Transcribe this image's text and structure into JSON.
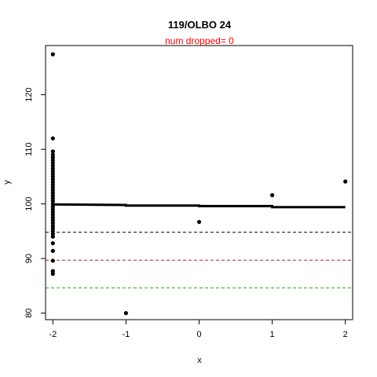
{
  "chart_data": {
    "type": "scatter",
    "title": "119/OLBO 24",
    "subtitle": "num dropped= 0",
    "xlabel": "x",
    "ylabel": "y",
    "xlim": [
      -2.1,
      2.1
    ],
    "ylim": [
      78.8,
      129.0
    ],
    "x_ticks": [
      -2,
      -1,
      0,
      1,
      2
    ],
    "x_tick_labels": [
      "-2",
      "-1",
      "0",
      "1",
      "2"
    ],
    "y_ticks": [
      80,
      90,
      100,
      110,
      120
    ],
    "y_tick_labels": [
      "80",
      "90",
      "100",
      "110",
      "120"
    ],
    "grid": false,
    "points": [
      {
        "x": -2,
        "y": 127.4
      },
      {
        "x": -2,
        "y": 112.0
      },
      {
        "x": -2,
        "y": 109.6
      },
      {
        "x": -2,
        "y": 109.0
      },
      {
        "x": -2,
        "y": 108.5
      },
      {
        "x": -2,
        "y": 108.0
      },
      {
        "x": -2,
        "y": 107.5
      },
      {
        "x": -2,
        "y": 107.0
      },
      {
        "x": -2,
        "y": 106.5
      },
      {
        "x": -2,
        "y": 106.0
      },
      {
        "x": -2,
        "y": 105.5
      },
      {
        "x": -2,
        "y": 105.0
      },
      {
        "x": -2,
        "y": 104.5
      },
      {
        "x": -2,
        "y": 104.0
      },
      {
        "x": -2,
        "y": 103.5
      },
      {
        "x": -2,
        "y": 103.0
      },
      {
        "x": -2,
        "y": 102.5
      },
      {
        "x": -2,
        "y": 102.0
      },
      {
        "x": -2,
        "y": 101.5
      },
      {
        "x": -2,
        "y": 101.0
      },
      {
        "x": -2,
        "y": 100.5
      },
      {
        "x": -2,
        "y": 100.0
      },
      {
        "x": -2,
        "y": 99.5
      },
      {
        "x": -2,
        "y": 99.0
      },
      {
        "x": -2,
        "y": 98.5
      },
      {
        "x": -2,
        "y": 98.0
      },
      {
        "x": -2,
        "y": 97.5
      },
      {
        "x": -2,
        "y": 97.0
      },
      {
        "x": -2,
        "y": 96.5
      },
      {
        "x": -2,
        "y": 96.0
      },
      {
        "x": -2,
        "y": 95.5
      },
      {
        "x": -2,
        "y": 95.0
      },
      {
        "x": -2,
        "y": 94.5
      },
      {
        "x": -2,
        "y": 94.0
      },
      {
        "x": -2,
        "y": 92.8
      },
      {
        "x": -2,
        "y": 91.4
      },
      {
        "x": -2,
        "y": 89.6
      },
      {
        "x": -2,
        "y": 87.7
      },
      {
        "x": -2,
        "y": 87.2
      },
      {
        "x": -1,
        "y": 80.0
      },
      {
        "x": 0,
        "y": 96.7
      },
      {
        "x": 1,
        "y": 101.6
      },
      {
        "x": 2,
        "y": 104.1
      }
    ],
    "fit_line": [
      {
        "x": -2,
        "y": 99.9
      },
      {
        "x": -1,
        "y": 99.8
      },
      {
        "x": -1,
        "y": 99.7
      },
      {
        "x": 0,
        "y": 99.7
      },
      {
        "x": 0,
        "y": 99.6
      },
      {
        "x": 1,
        "y": 99.6
      },
      {
        "x": 1,
        "y": 99.4
      },
      {
        "x": 2,
        "y": 99.4
      }
    ],
    "hlines": [
      {
        "y": 94.8,
        "color": "#000000",
        "style": "dashed"
      },
      {
        "y": 89.7,
        "color": "#b22222",
        "style": "dashed"
      },
      {
        "y": 84.6,
        "color": "#22aa22",
        "style": "dashed"
      }
    ],
    "colors": {
      "points": "#000000",
      "fit_line": "#000000",
      "subtitle": "#ff0000",
      "axes": "#000000"
    }
  }
}
